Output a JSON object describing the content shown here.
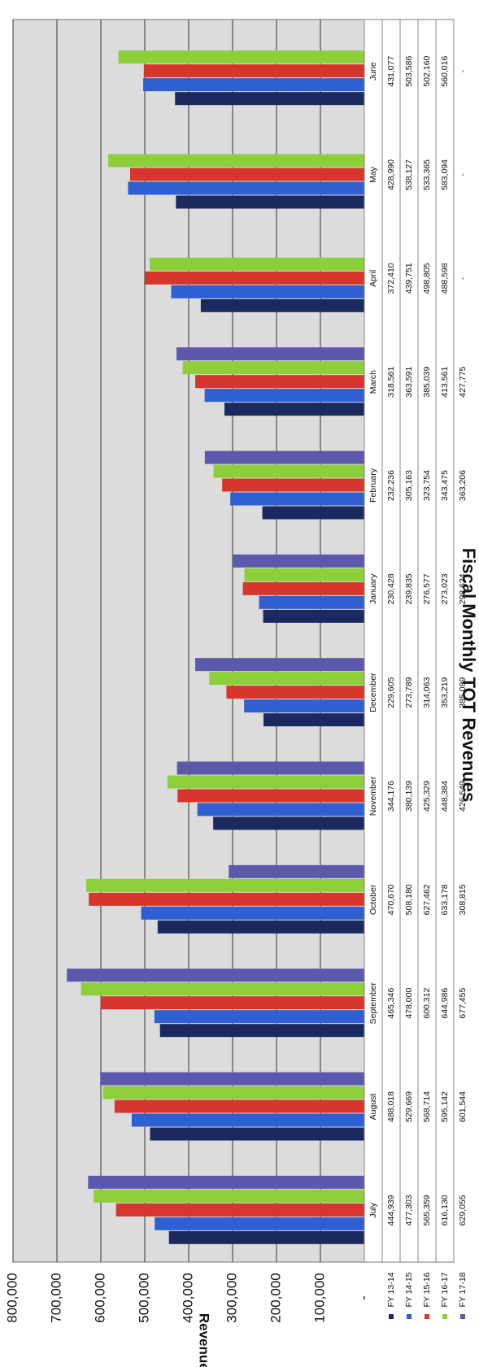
{
  "chart_data": {
    "type": "bar",
    "title": "Fiscal Monthly TOT Revenues",
    "ylabel": "Revenues",
    "ylim": [
      0,
      800000
    ],
    "yticks": [
      {
        "value": 0,
        "label": "-"
      },
      {
        "value": 100000,
        "label": "100,000"
      },
      {
        "value": 200000,
        "label": "200,000"
      },
      {
        "value": 300000,
        "label": "300,000"
      },
      {
        "value": 400000,
        "label": "400,000"
      },
      {
        "value": 500000,
        "label": "500,000"
      },
      {
        "value": 600000,
        "label": "600,000"
      },
      {
        "value": 700000,
        "label": "700,000"
      },
      {
        "value": 800000,
        "label": "800,000"
      }
    ],
    "categories": [
      "July",
      "August",
      "September",
      "October",
      "November",
      "December",
      "January",
      "February",
      "March",
      "April",
      "May",
      "June"
    ],
    "series": [
      {
        "name": "FY 13-14",
        "color": "#1a2a5e",
        "values": [
          444939,
          488018,
          465346,
          470670,
          344176,
          229605,
          230428,
          232236,
          318561,
          372410,
          428990,
          431077
        ],
        "labels": [
          "444,939",
          "488,018",
          "465,346",
          "470,670",
          "344,176",
          "229,605",
          "230,428",
          "232,236",
          "318,561",
          "372,410",
          "428,990",
          "431,077"
        ]
      },
      {
        "name": "FY 14-15",
        "color": "#2f5fd0",
        "values": [
          477303,
          529669,
          478000,
          508180,
          380139,
          273789,
          239835,
          305163,
          363591,
          439751,
          538127,
          503586
        ],
        "labels": [
          "477,303",
          "529,669",
          "478,000",
          "508,180",
          "380,139",
          "273,789",
          "239,835",
          "305,163",
          "363,591",
          "439,751",
          "538,127",
          "503,586"
        ]
      },
      {
        "name": "FY 15-16",
        "color": "#d6362b",
        "values": [
          565359,
          568714,
          600312,
          627462,
          425329,
          314063,
          276577,
          323754,
          385039,
          498805,
          533365,
          502160
        ],
        "labels": [
          "565,359",
          "568,714",
          "600,312",
          "627,462",
          "425,329",
          "314,063",
          "276,577",
          "323,754",
          "385,039",
          "498,805",
          "533,365",
          "502,160"
        ]
      },
      {
        "name": "FY 16-17",
        "color": "#8ccf3a",
        "values": [
          616130,
          595142,
          644986,
          633178,
          448384,
          353219,
          273023,
          343475,
          413561,
          488598,
          583094,
          560016
        ],
        "labels": [
          "616,130",
          "595,142",
          "644,986",
          "633,178",
          "448,384",
          "353,219",
          "273,023",
          "343,475",
          "413,561",
          "488,598",
          "583,094",
          "560,016"
        ]
      },
      {
        "name": "FY 17-18",
        "color": "#5c59ad",
        "values": [
          629055,
          601544,
          677455,
          308815,
          426549,
          385089,
          298624,
          363206,
          427775,
          null,
          null,
          null
        ],
        "labels": [
          "629,055",
          "601,544",
          "677,455",
          "308,815",
          "426,549",
          "385,089",
          "298,624",
          "363,206",
          "427,775",
          "-",
          "-",
          "-"
        ]
      }
    ],
    "grid": true,
    "legend": "table-left",
    "orientation": "rotated-90-clockwise"
  }
}
